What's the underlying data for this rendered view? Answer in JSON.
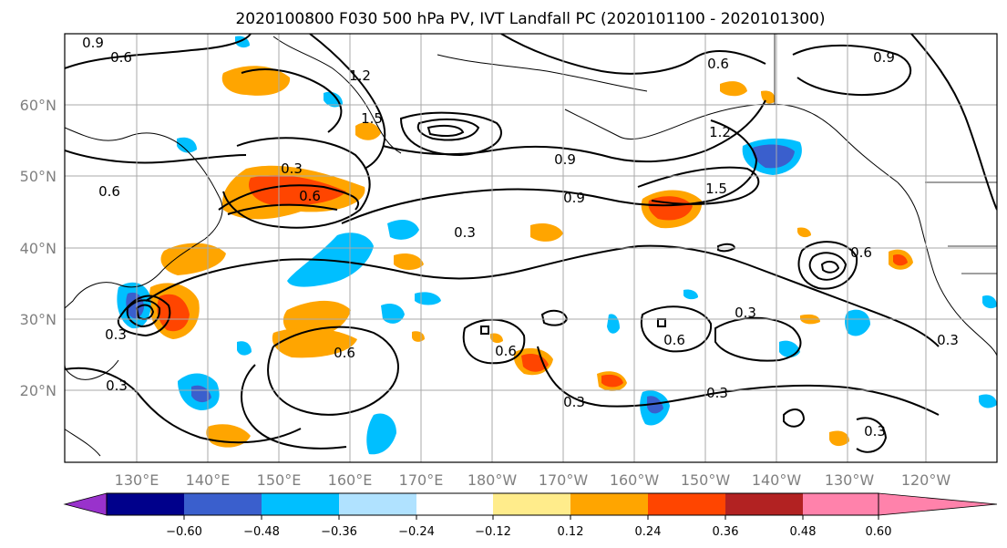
{
  "figure": {
    "title": "2020100800 F030 500 hPa PV, IVT Landfall PC (2020101100 - 2020101300)"
  },
  "map": {
    "lon_ticks": [
      "130°E",
      "140°E",
      "150°E",
      "160°E",
      "170°E",
      "180°W",
      "170°W",
      "160°W",
      "150°W",
      "140°W",
      "130°W",
      "120°W"
    ],
    "lat_ticks": [
      "20°N",
      "30°N",
      "40°N",
      "50°N",
      "60°N"
    ],
    "gridlines": true,
    "contour_labels": [
      "0.9",
      "0.6",
      "1.2",
      "1.5",
      "0.3",
      "0.6",
      "0.9",
      "1.2",
      "1.5",
      "0.9",
      "0.6",
      "0.3",
      "0.3",
      "0.6",
      "0.6",
      "0.3",
      "0.3",
      "0.3",
      "0.6",
      "0.3",
      "0.6",
      "0.9",
      "0.3",
      "0.3",
      "0.6"
    ]
  },
  "colorbar": {
    "ticks": [
      "−0.60",
      "−0.48",
      "−0.36",
      "−0.24",
      "−0.12",
      "0.12",
      "0.24",
      "0.36",
      "0.48",
      "0.60"
    ],
    "colors": [
      "#9932CC",
      "#00008B",
      "#3A5FCD",
      "#00BFFF",
      "#B0E2FF",
      "#FFFFFF",
      "#FFEC8B",
      "#FFA500",
      "#FF4500",
      "#B22222",
      "#FF82AB"
    ]
  }
}
